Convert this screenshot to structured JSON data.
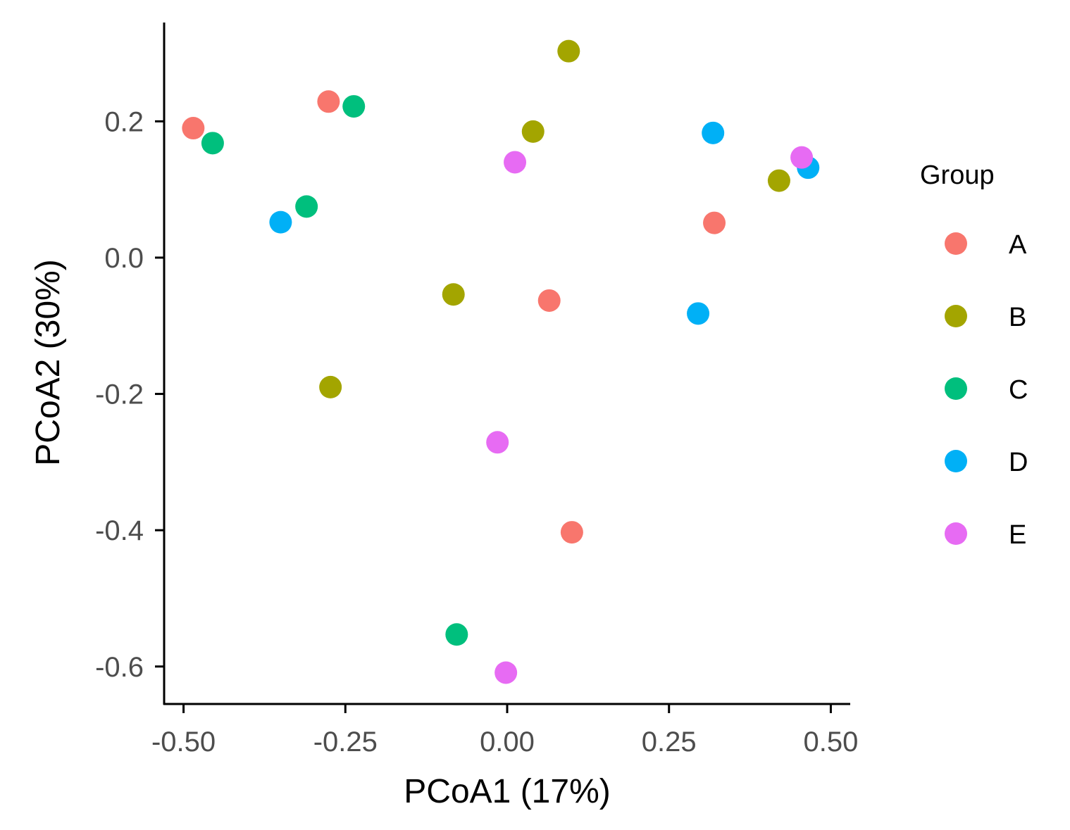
{
  "chart_data": {
    "type": "scatter",
    "xlabel": "PCoA1 (17%)",
    "ylabel": "PCoA2 (30%)",
    "xlim": [
      -0.53,
      0.53
    ],
    "ylim": [
      -0.655,
      0.345
    ],
    "x_ticks": [
      -0.5,
      -0.25,
      0.0,
      0.25,
      0.5
    ],
    "x_tick_labels": [
      "-0.50",
      "-0.25",
      "0.00",
      "0.25",
      "0.50"
    ],
    "y_ticks": [
      0.2,
      0.0,
      -0.2,
      -0.4,
      -0.6
    ],
    "y_tick_labels": [
      "0.2",
      "0.0",
      "-0.2",
      "-0.4",
      "-0.6"
    ],
    "grid": false,
    "legend": {
      "title": "Group",
      "position": "right"
    },
    "series": [
      {
        "name": "A",
        "color": "#F8766D",
        "points": [
          {
            "x": -0.485,
            "y": 0.19
          },
          {
            "x": -0.276,
            "y": 0.229
          },
          {
            "x": 0.32,
            "y": 0.051
          },
          {
            "x": 0.065,
            "y": -0.063
          },
          {
            "x": 0.1,
            "y": -0.403
          }
        ]
      },
      {
        "name": "B",
        "color": "#A3A500",
        "points": [
          {
            "x": 0.095,
            "y": 0.303
          },
          {
            "x": 0.04,
            "y": 0.185
          },
          {
            "x": 0.42,
            "y": 0.113
          },
          {
            "x": -0.083,
            "y": -0.054
          },
          {
            "x": -0.273,
            "y": -0.19
          }
        ]
      },
      {
        "name": "C",
        "color": "#00BF7D",
        "points": [
          {
            "x": -0.237,
            "y": 0.222
          },
          {
            "x": -0.455,
            "y": 0.168
          },
          {
            "x": -0.31,
            "y": 0.075
          },
          {
            "x": -0.078,
            "y": -0.553
          }
        ]
      },
      {
        "name": "D",
        "color": "#00B0F6",
        "points": [
          {
            "x": 0.318,
            "y": 0.183
          },
          {
            "x": 0.465,
            "y": 0.132
          },
          {
            "x": -0.35,
            "y": 0.052
          },
          {
            "x": 0.295,
            "y": -0.082
          }
        ]
      },
      {
        "name": "E",
        "color": "#E76BF3",
        "points": [
          {
            "x": 0.012,
            "y": 0.14
          },
          {
            "x": 0.455,
            "y": 0.147
          },
          {
            "x": -0.015,
            "y": -0.271
          },
          {
            "x": -0.002,
            "y": -0.609
          }
        ]
      }
    ]
  }
}
